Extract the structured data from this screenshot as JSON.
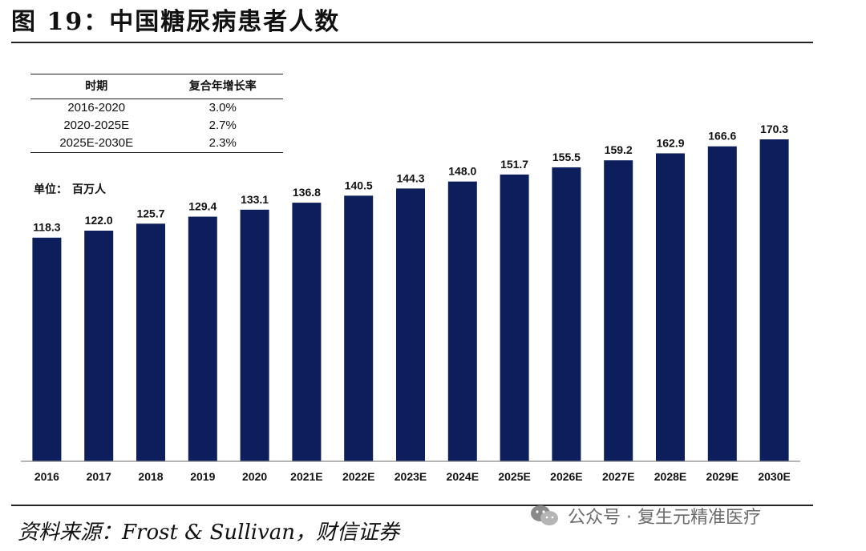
{
  "title": "图 19：中国糖尿病患者人数",
  "cagr_table": {
    "headers": [
      "时期",
      "复合年增长率"
    ],
    "rows": [
      {
        "period": "2016-2020",
        "rate": "3.0%"
      },
      {
        "period": "2020-2025E",
        "rate": "2.7%"
      },
      {
        "period": "2025E-2030E",
        "rate": "2.3%"
      }
    ]
  },
  "unit_label": "单位：",
  "unit_value": "百万人",
  "source": "资料来源：Frost & Sullivan，财信证券",
  "watermark": {
    "icon": "wechat-icon",
    "text": "公众号 · 复生元精准医疗"
  },
  "colors": {
    "bar": "#0d1e5c",
    "axis": "#888888"
  },
  "chart_data": {
    "type": "bar",
    "categories": [
      "2016",
      "2017",
      "2018",
      "2019",
      "2020",
      "2021E",
      "2022E",
      "2023E",
      "2024E",
      "2025E",
      "2026E",
      "2027E",
      "2028E",
      "2029E",
      "2030E"
    ],
    "values": [
      118.3,
      122.0,
      125.7,
      129.4,
      133.1,
      136.8,
      140.5,
      144.3,
      148.0,
      151.7,
      155.5,
      159.2,
      162.9,
      166.6,
      170.3
    ],
    "value_labels": [
      "118.3",
      "122.0",
      "125.7",
      "129.4",
      "133.1",
      "136.8",
      "140.5",
      "144.3",
      "148.0",
      "151.7",
      "155.5",
      "159.2",
      "162.9",
      "166.6",
      "170.3"
    ],
    "ylim": [
      0,
      170.3
    ],
    "grid": false,
    "legend": "none"
  }
}
